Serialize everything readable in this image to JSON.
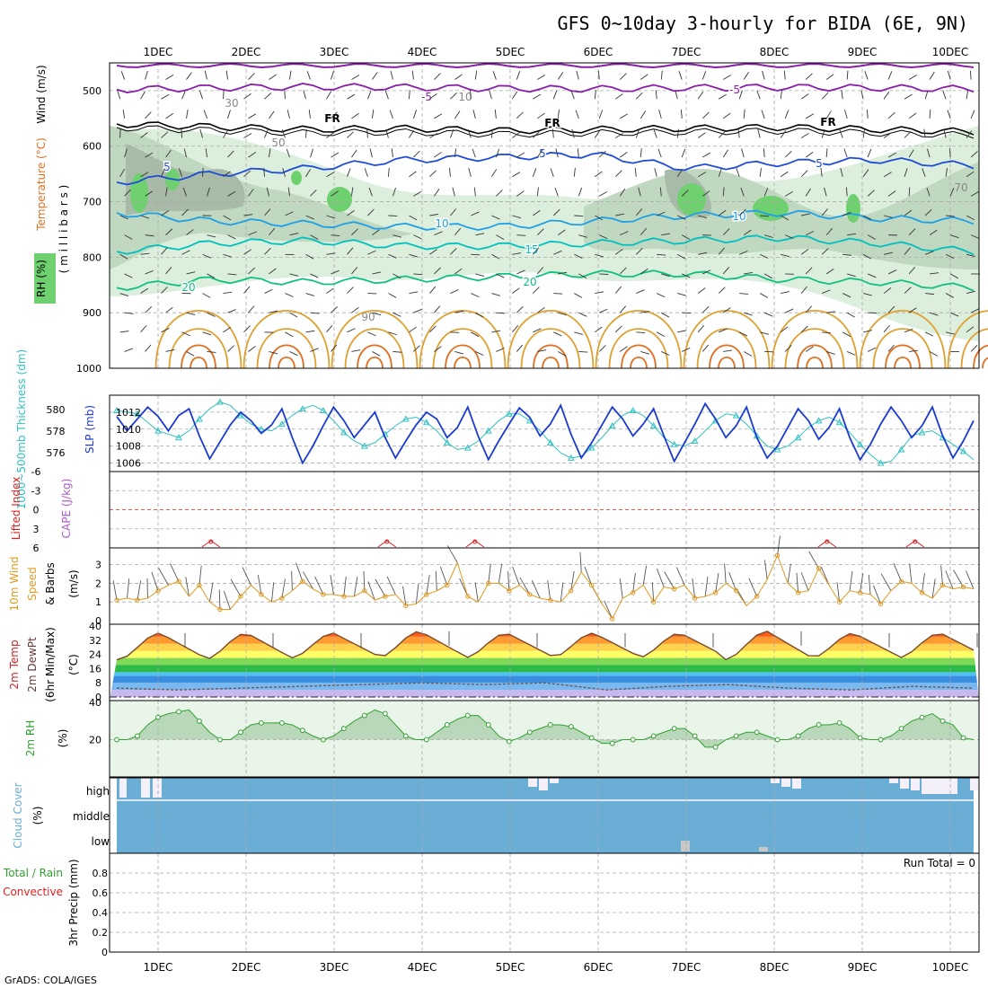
{
  "title": "GFS 0~10day 3-hourly for BIDA (6E, 9N)",
  "credit": "GrADS: COLA/IGES",
  "dates": [
    "1DEC",
    "2DEC",
    "3DEC",
    "4DEC",
    "5DEC",
    "6DEC",
    "7DEC",
    "8DEC",
    "9DEC",
    "10DEC"
  ],
  "colors": {
    "rh_fill": "#dcefdc",
    "rh_mid": "#c0d8c0",
    "rh_dark": "#a8baa8",
    "rh_green": "#6fd06f",
    "t5": "#1e4cd8",
    "t10": "#1ea0e8",
    "t15": "#00c0c0",
    "t20": "#10c080",
    "tneg5": "#8a1ea8",
    "warm": "#e0a030",
    "hot": "#e07020",
    "slp": "#1a3ad0",
    "thick": "#30c0c0",
    "cape": "#e02020",
    "wind10": "#e09a20",
    "rh2m": "#30a030",
    "cloud": "#6aaed6"
  },
  "chart_data": [
    {
      "panel": "upper-air",
      "type": "heatmap",
      "ylabel": "(millibars)",
      "side_labels": [
        "Wind (m/s)",
        "Temperature (°C)",
        "RH (%)"
      ],
      "yticks": [
        500,
        600,
        700,
        800,
        900,
        1000
      ],
      "ylim": [
        450,
        1000
      ],
      "contour_labels_temperature": [
        "-5",
        "-5",
        "FR",
        "FR",
        "FR",
        "5",
        "5",
        "5",
        "10",
        "10",
        "15",
        "20",
        "20"
      ],
      "contour_labels_rh": [
        "10",
        "30",
        "50",
        "70",
        "90"
      ],
      "isotherms": [
        {
          "label": "-5",
          "level_mb": [
            498,
            495,
            493,
            494,
            496,
            497,
            495,
            494,
            495,
            497
          ]
        },
        {
          "label": "FR",
          "level_mb": [
            560,
            565,
            570,
            568,
            572,
            570,
            568,
            566,
            570,
            574
          ]
        },
        {
          "label": "5",
          "level_mb": [
            665,
            650,
            640,
            625,
            620,
            615,
            640,
            630,
            625,
            635
          ]
        },
        {
          "label": "10",
          "level_mb": [
            720,
            735,
            740,
            745,
            745,
            735,
            725,
            720,
            730,
            735
          ]
        },
        {
          "label": "15",
          "level_mb": [
            790,
            775,
            770,
            780,
            780,
            775,
            770,
            765,
            775,
            790
          ]
        },
        {
          "label": "20",
          "level_mb": [
            855,
            840,
            845,
            840,
            835,
            830,
            830,
            840,
            845,
            855
          ]
        }
      ]
    },
    {
      "panel": "slp-thickness",
      "type": "line",
      "ylabel_left": "1000~500mb Thickness (dm)",
      "ylabel_right": "SLP (mb)",
      "left_ticks": [
        576,
        578,
        580
      ],
      "right_ticks": [
        1006,
        1008,
        1010,
        1012
      ],
      "slp_ylim": [
        1005,
        1014
      ],
      "slp": [
        1011.5,
        1009.8,
        1011.2,
        1012.6,
        1011.5,
        1009.8,
        1011.6,
        1012.4,
        1009.2,
        1006.5,
        1008.5,
        1010.5,
        1012.0,
        1011.0,
        1009.5,
        1010.5,
        1012.4,
        1009.0,
        1006.0,
        1008.0,
        1010.4,
        1012.6,
        1011.0,
        1009.0,
        1010.5,
        1012.0,
        1009.0,
        1006.6,
        1008.6,
        1010.5,
        1012.0,
        1011.2,
        1009.0,
        1010.2,
        1012.6,
        1009.2,
        1006.4,
        1008.6,
        1010.6,
        1012.5,
        1011.4,
        1009.2,
        1010.6,
        1012.8,
        1009.4,
        1006.6,
        1008.4,
        1010.5,
        1012.6,
        1011.2,
        1009.2,
        1010.6,
        1012.4,
        1009.2,
        1006.2,
        1008.4,
        1010.6,
        1013.0,
        1011.2,
        1009.0,
        1010.4,
        1012.6,
        1009.0,
        1006.6,
        1008.0,
        1010.2,
        1012.4,
        1011.0,
        1008.8,
        1010.2,
        1012.4,
        1009.0,
        1006.4,
        1008.2,
        1010.6,
        1012.6,
        1011.0,
        1009.0,
        1010.4,
        1012.6,
        1009.2,
        1006.6,
        1008.6,
        1011.0
      ],
      "thickness_dm_scaled_slp": [
        1012.2,
        1012.0,
        1011.8,
        1010.8,
        1009.8,
        1009.4,
        1009.0,
        1009.8,
        1011.2,
        1012.4,
        1013.2,
        1012.8,
        1011.6,
        1010.6,
        1010.0,
        1009.8,
        1010.6,
        1011.6,
        1012.4,
        1012.8,
        1012.2,
        1011.0,
        1009.6,
        1008.6,
        1008.0,
        1008.4,
        1009.4,
        1010.4,
        1011.2,
        1011.4,
        1010.8,
        1009.8,
        1008.4,
        1007.6,
        1007.8,
        1008.6,
        1009.8,
        1011.0,
        1011.8,
        1011.8,
        1011.0,
        1009.8,
        1008.4,
        1007.2,
        1006.6,
        1006.8,
        1007.8,
        1009.0,
        1010.4,
        1011.6,
        1012.2,
        1011.6,
        1010.4,
        1009.0,
        1008.2,
        1008.0,
        1008.6,
        1009.8,
        1011.0,
        1011.8,
        1011.6,
        1010.6,
        1009.2,
        1008.0,
        1007.6,
        1008.0,
        1009.0,
        1010.2,
        1011.0,
        1011.4,
        1010.8,
        1009.6,
        1008.2,
        1007.0,
        1006.0,
        1006.2,
        1007.6,
        1009.2,
        1009.6,
        1009.8,
        1009.0,
        1008.2,
        1007.4,
        1006.4
      ]
    },
    {
      "panel": "cape-li",
      "type": "line",
      "ylabel_left": "Lifted Index",
      "ylabel_right": "CAPE (J/kg)",
      "yticks": [
        "-6",
        "-3",
        "0",
        "3",
        "6"
      ],
      "ylim": [
        -6,
        6
      ],
      "cape_bumps_day": [
        1.6,
        3.6,
        4.6,
        8.6,
        9.6
      ]
    },
    {
      "panel": "wind10m",
      "type": "line",
      "ylabel": "10m Wind Speed & Barbs (m/s)",
      "yticks": [
        0,
        1,
        2,
        3
      ],
      "ylim": [
        0,
        3.8
      ],
      "speed": [
        1.1,
        1.2,
        1.1,
        1.2,
        1.6,
        1.9,
        2.1,
        1.3,
        1.9,
        1.0,
        0.6,
        0.6,
        1.3,
        1.9,
        1.4,
        1.0,
        1.2,
        1.6,
        2.1,
        1.7,
        1.4,
        1.4,
        1.3,
        1.3,
        1.6,
        1.1,
        1.3,
        1.4,
        0.8,
        0.9,
        1.4,
        1.6,
        1.9,
        3.1,
        1.3,
        1.0,
        2.0,
        2.0,
        1.6,
        1.9,
        1.4,
        1.2,
        1.1,
        1.0,
        1.6,
        2.6,
        1.9,
        0.9,
        0.1,
        1.2,
        1.5,
        1.9,
        1.0,
        1.8,
        1.7,
        1.9,
        1.2,
        1.3,
        1.5,
        2.0,
        1.6,
        0.8,
        1.3,
        2.2,
        3.5,
        2.0,
        1.5,
        1.6,
        2.8,
        1.9,
        1.0,
        1.6,
        1.5,
        1.4,
        0.9,
        1.6,
        2.1,
        2.0,
        1.5,
        1.2,
        1.9,
        1.7,
        1.8,
        1.7
      ]
    },
    {
      "panel": "temp2m",
      "type": "area",
      "ylabel": "2m Temp 2m DewPt (6hr Min/Max) (°C)",
      "yticks": [
        0,
        8,
        16,
        24,
        32,
        40
      ],
      "ylim": [
        -2,
        41
      ],
      "temp_daily_min": [
        21,
        21,
        22,
        22,
        22,
        22,
        22,
        21,
        22,
        22
      ],
      "temp_daily_max": [
        36,
        36,
        36,
        37,
        36,
        36,
        36,
        37,
        36,
        36
      ],
      "dewpoint": [
        5,
        4,
        5,
        6,
        7,
        8,
        7,
        8,
        4,
        6,
        7,
        5,
        4,
        6,
        5
      ]
    },
    {
      "panel": "rh2m",
      "type": "area",
      "ylabel": "2m RH (%)",
      "yticks": [
        20,
        40
      ],
      "ylim": [
        0,
        41
      ],
      "rh": [
        20,
        20,
        22,
        28,
        32,
        34,
        35,
        36,
        30,
        24,
        20,
        20,
        24,
        28,
        29,
        29,
        29,
        28,
        25,
        22,
        20,
        22,
        26,
        30,
        33,
        36,
        34,
        28,
        22,
        20,
        20,
        24,
        28,
        31,
        33,
        33,
        28,
        22,
        19,
        21,
        24,
        26,
        28,
        28,
        27,
        24,
        21,
        18,
        18,
        20,
        20,
        20,
        22,
        24,
        26,
        26,
        22,
        16,
        16,
        20,
        22,
        24,
        24,
        22,
        20,
        20,
        22,
        26,
        28,
        28,
        29,
        26,
        21,
        20,
        20,
        22,
        26,
        30,
        32,
        34,
        30,
        28,
        21,
        20
      ]
    },
    {
      "panel": "cloud",
      "type": "heatmap",
      "ylabel": "Cloud Cover (%)",
      "levels": [
        "high",
        "middle",
        "low"
      ]
    },
    {
      "panel": "precip",
      "type": "bar",
      "ylabel": "3hr Precip (mm)",
      "side_labels": [
        "Total / Rain",
        "Convective"
      ],
      "yticks": [
        "0",
        "0.2",
        "0.4",
        "0.6",
        "0.8"
      ],
      "ylim": [
        0,
        1
      ],
      "run_total_text": "Run Total = 0"
    }
  ]
}
